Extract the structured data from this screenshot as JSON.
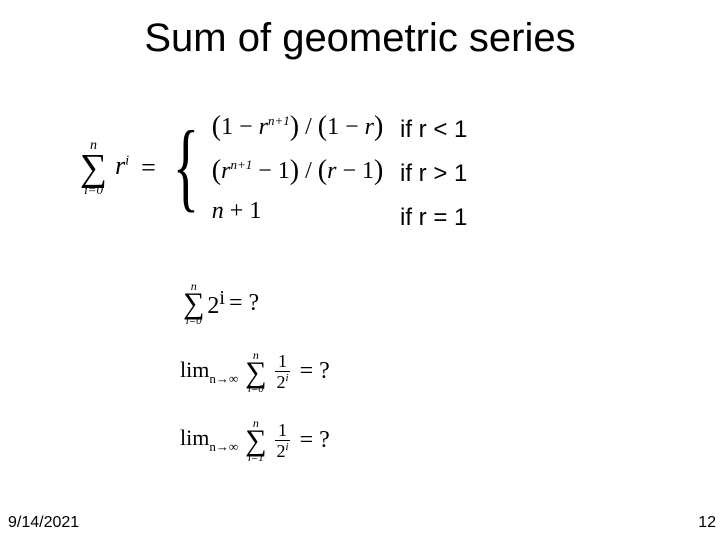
{
  "title": "Sum of geometric series",
  "main": {
    "sigma_upper": "n",
    "sigma_lower": "i=0",
    "term_base": "r",
    "term_exp": "i",
    "cases": {
      "c1": "(1 − r^{n+1}) / (1 − r)",
      "c2": "(r^{n+1} − 1) / (r − 1)",
      "c3": "n + 1"
    }
  },
  "conditions": {
    "c1": "if r < 1",
    "c2": "if r > 1",
    "c3": "if r = 1"
  },
  "examples": {
    "e1": {
      "sigma_upper": "n",
      "sigma_lower": "i=0",
      "base": "2",
      "exp": "i",
      "rhs": "= ?"
    },
    "e2": {
      "lim_sub": "n→∞",
      "sigma_upper": "n",
      "sigma_lower": "i=0",
      "num": "1",
      "den_base": "2",
      "den_exp": "i",
      "rhs": "= ?"
    },
    "e3": {
      "lim_sub": "n→∞",
      "sigma_upper": "n",
      "sigma_lower": "i=1",
      "num": "1",
      "den_base": "2",
      "den_exp": "i",
      "rhs": "= ?"
    }
  },
  "footer": {
    "date": "9/14/2021",
    "page": "12"
  },
  "colors": {
    "bg": "#ffffff",
    "text": "#000000"
  },
  "fonts": {
    "title": "Arial",
    "math": "Times New Roman",
    "title_size_pt": 30,
    "body_size_pt": 18
  }
}
